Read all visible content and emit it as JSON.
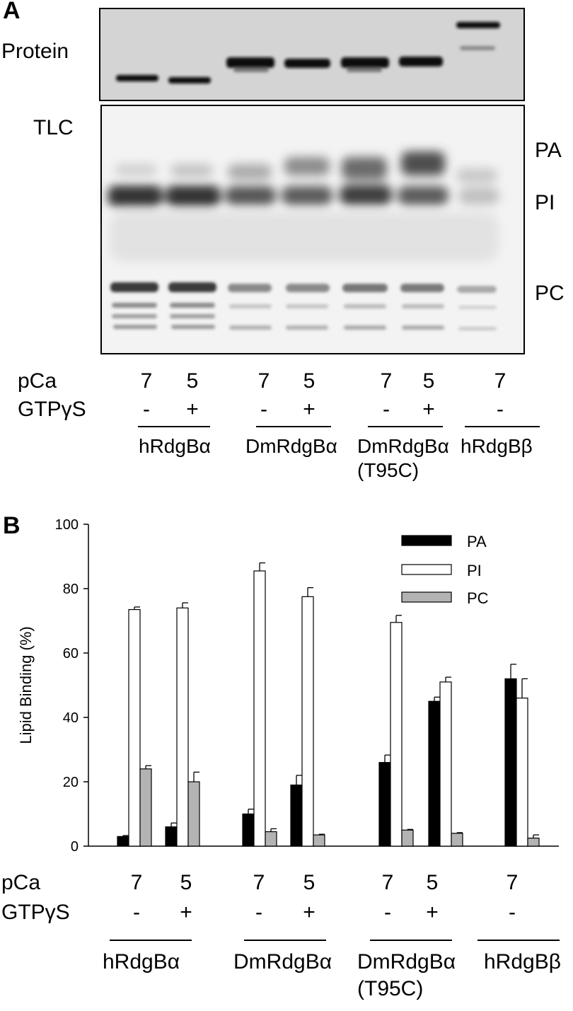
{
  "panel_a": {
    "letter": "A",
    "protein_label": "Protein",
    "tlc_label": "TLC",
    "band_labels": [
      "PA",
      "PI",
      "PC"
    ]
  },
  "panel_b": {
    "letter": "B"
  },
  "conditions": {
    "pca_label": "pCa",
    "gtp_label": "GTPγS",
    "pca_values": [
      "7",
      "5",
      "7",
      "5",
      "7",
      "5",
      "7"
    ],
    "gtp_values": [
      "-",
      "+",
      "-",
      "+",
      "-",
      "+",
      "-"
    ]
  },
  "groups": [
    {
      "label": "hRdgBα",
      "sublabel": ""
    },
    {
      "label": "DmRdgBα",
      "sublabel": ""
    },
    {
      "label": "DmRdgBα",
      "sublabel": "(T95C)"
    },
    {
      "label": "hRdgBβ",
      "sublabel": ""
    }
  ],
  "chart_data": {
    "type": "bar",
    "ylabel": "Lipid Binding (%)",
    "xlabel": "",
    "ylim": [
      0,
      100
    ],
    "yticks": [
      "0",
      "20",
      "40",
      "60",
      "80",
      "100"
    ],
    "categories": [
      "hRdgBα pCa 7 GTPγS -",
      "hRdgBα pCa 5 GTPγS +",
      "DmRdgBα pCa 7 GTPγS -",
      "DmRdgBα pCa 5 GTPγS +",
      "DmRdgBα (T95C) pCa 7 GTPγS -",
      "DmRdgBα (T95C) pCa 5 GTPγS +",
      "hRdgBβ pCa 7 GTPγS -"
    ],
    "series": [
      {
        "name": "PA",
        "color": "#000000",
        "values": [
          3,
          6,
          10,
          19,
          26,
          45,
          52
        ],
        "errors": [
          0.3,
          1.2,
          1.5,
          3.0,
          2.3,
          1.3,
          4.5
        ]
      },
      {
        "name": "PI",
        "color": "#ffffff",
        "values": [
          73.5,
          74,
          85.5,
          77.5,
          69.5,
          51,
          46
        ],
        "errors": [
          0.8,
          1.6,
          2.5,
          2.8,
          2.2,
          1.5,
          6.0
        ]
      },
      {
        "name": "PC",
        "color": "#b3b3b3",
        "values": [
          24,
          20,
          4.5,
          3.5,
          5,
          4,
          2.5
        ],
        "errors": [
          1.0,
          3.0,
          0.9,
          0.2,
          0.2,
          0.2,
          1.0
        ]
      }
    ],
    "legend_position": "top-right",
    "grid": false
  }
}
